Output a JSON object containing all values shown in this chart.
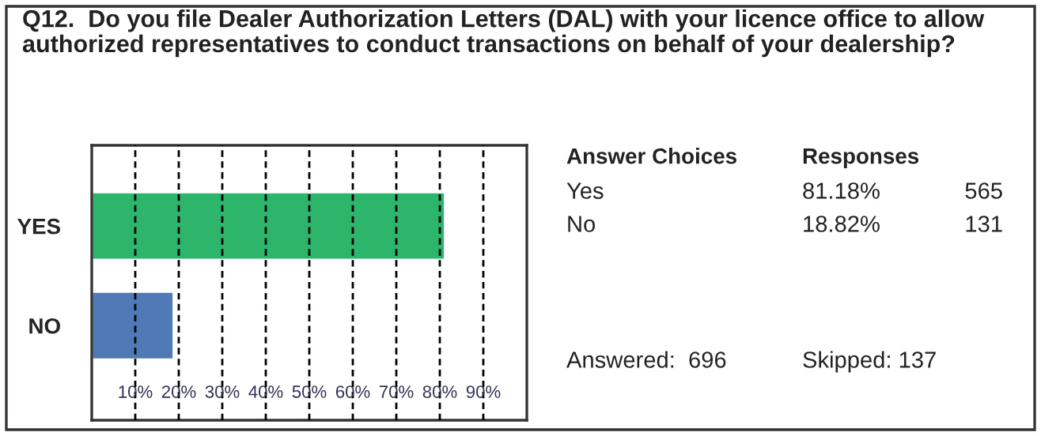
{
  "chart_data": {
    "type": "bar",
    "orientation": "horizontal",
    "title": "Q12.  Do you file Dealer Authorization Letters (DAL) with your licence office to allow authorized representatives to conduct transactions on behalf of your dealership?",
    "categories": [
      "YES",
      "NO"
    ],
    "values": [
      81.18,
      18.82
    ],
    "colors": [
      "#2db56b",
      "#4f7ab5"
    ],
    "xlim": [
      0,
      100
    ],
    "xticks": [
      {
        "value": 10,
        "label": "10%"
      },
      {
        "value": 20,
        "label": "20%"
      },
      {
        "value": 30,
        "label": "30%"
      },
      {
        "value": 40,
        "label": "40%"
      },
      {
        "value": 50,
        "label": "50%"
      },
      {
        "value": 60,
        "label": "60%"
      },
      {
        "value": 70,
        "label": "70%"
      },
      {
        "value": 80,
        "label": "80%"
      },
      {
        "value": 90,
        "label": "90%"
      }
    ],
    "grid": "x",
    "annotations": [
      "Answer Choices",
      "Responses",
      "Yes",
      "81.18%",
      "565",
      "No",
      "18.82%",
      "131",
      "Answered:  696",
      "Skipped: 137"
    ]
  }
}
